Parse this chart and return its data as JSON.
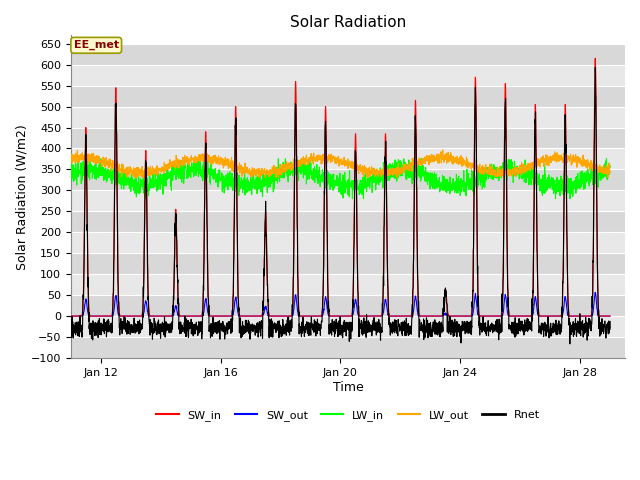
{
  "title": "Solar Radiation",
  "xlabel": "Time",
  "ylabel": "Solar Radiation (W/m2)",
  "ylim": [
    -100,
    670
  ],
  "yticks": [
    -100,
    -50,
    0,
    50,
    100,
    150,
    200,
    250,
    300,
    350,
    400,
    450,
    500,
    550,
    600,
    650
  ],
  "xlim_days": [
    11.0,
    29.5
  ],
  "xtick_days": [
    12,
    16,
    20,
    24,
    28
  ],
  "xtick_labels": [
    "Jan 12",
    "Jan 16",
    "Jan 20",
    "Jan 24",
    "Jan 28"
  ],
  "annotation_text": "EE_met",
  "annotation_color": "#8B0000",
  "annotation_bg": "#FFFACD",
  "annotation_border": "#999900",
  "legend_entries": [
    {
      "label": "SW_in",
      "color": "red",
      "lw": 1.5
    },
    {
      "label": "SW_out",
      "color": "blue",
      "lw": 1.5
    },
    {
      "label": "LW_in",
      "color": "#00FF00",
      "lw": 1.5
    },
    {
      "label": "LW_out",
      "color": "orange",
      "lw": 1.5
    },
    {
      "label": "Rnet",
      "color": "black",
      "lw": 2.0
    }
  ],
  "bg_color": "#FFFFFF",
  "plot_bg_color": "#DCDCDC",
  "num_days": 18,
  "seed": 42,
  "band_colors": [
    "#D8D8D8",
    "#E8E8E8"
  ],
  "grid_color": "#FFFFFF"
}
